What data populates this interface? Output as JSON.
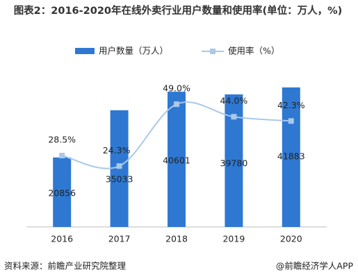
{
  "chart_data": {
    "type": "bar-line",
    "title": "图表2：2016-2020年在线外卖行业用户数量和使用率(单位：万人，%)",
    "categories": [
      "2016",
      "2017",
      "2018",
      "2019",
      "2020"
    ],
    "series": [
      {
        "name": "用户数量（万人）",
        "color": "#2e78d2",
        "type": "bar",
        "values": [
          20856,
          35033,
          40601,
          39780,
          41883
        ]
      },
      {
        "name": "使用率（%）",
        "color": "#a9c9e8",
        "type": "line",
        "axis": "y2",
        "values": [
          28.5,
          24.3,
          49.0,
          44.0,
          42.3
        ],
        "value_labels": [
          "28.5%",
          "24.3%",
          "49.0%",
          "44.0%",
          "42.3%"
        ]
      }
    ],
    "ylim": [
      0,
      50000
    ],
    "y2lim": [
      0,
      66.5
    ],
    "source": "资料来源：前瞻产业研究院整理",
    "brand": "@前瞻经济学人APP"
  }
}
